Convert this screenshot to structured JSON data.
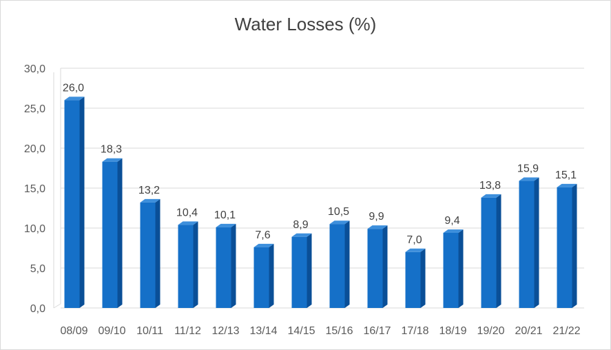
{
  "chart_data": {
    "type": "bar",
    "title": "Water Losses (%)",
    "xlabel": "",
    "ylabel": "",
    "categories": [
      "08/09",
      "09/10",
      "10/11",
      "11/12",
      "12/13",
      "13/14",
      "14/15",
      "15/16",
      "16/17",
      "17/18",
      "18/19",
      "19/20",
      "20/21",
      "21/22"
    ],
    "values": [
      26.0,
      18.3,
      13.2,
      10.4,
      10.1,
      7.6,
      8.9,
      10.5,
      9.9,
      7.0,
      9.4,
      13.8,
      15.9,
      15.1
    ],
    "data_labels": [
      "26,0",
      "18,3",
      "13,2",
      "10,4",
      "10,1",
      "7,6",
      "8,9",
      "10,5",
      "9,9",
      "7,0",
      "9,4",
      "13,8",
      "15,9",
      "15,1"
    ],
    "ylim": [
      0,
      30
    ],
    "y_ticks": [
      "0,0",
      "5,0",
      "10,0",
      "15,0",
      "20,0",
      "25,0",
      "30,0"
    ],
    "grid": true,
    "legend": "none",
    "colors": {
      "bar_front": "#1570c8",
      "bar_side": "#0a4f97",
      "bar_top": "#3d8fdc",
      "grid": "#d9d9d9"
    }
  }
}
